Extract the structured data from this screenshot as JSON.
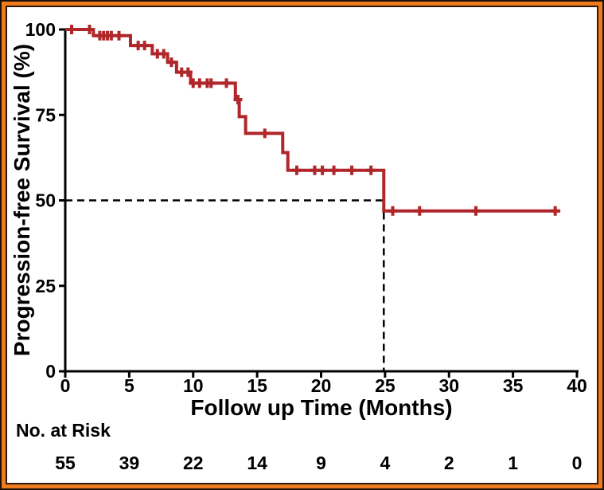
{
  "figure": {
    "background": "#ffffff",
    "border": {
      "outer": "#1c120a",
      "band": "#ef7b1f",
      "inner": "#30190c"
    }
  },
  "chart_data": {
    "type": "line",
    "subtype": "kaplan-meier-step-curve",
    "title": "",
    "xlabel": "Follow up Time (Months)",
    "ylabel": "Progression-free Survival (%)",
    "xlim": [
      0,
      40
    ],
    "ylim": [
      0,
      100
    ],
    "xticks": [
      0,
      5,
      10,
      15,
      20,
      25,
      30,
      35,
      40
    ],
    "yticks": [
      0,
      25,
      50,
      75,
      100
    ],
    "grid": false,
    "legend": false,
    "curve_color": "#b0272b",
    "axis_color": "#000000",
    "dash_color": "#000000",
    "series": [
      {
        "name": "Progression-free survival",
        "steps": [
          [
            0,
            100
          ],
          [
            2.2,
            98.2
          ],
          [
            5.1,
            95.3
          ],
          [
            6.8,
            92.9
          ],
          [
            8.0,
            90.4
          ],
          [
            8.7,
            87.5
          ],
          [
            9.8,
            84.3
          ],
          [
            13.3,
            79.5
          ],
          [
            13.6,
            74.5
          ],
          [
            14.1,
            69.6
          ],
          [
            17.0,
            64.0
          ],
          [
            17.4,
            58.8
          ],
          [
            24.9,
            46.9
          ]
        ],
        "end_time": 38.7,
        "censor_marks": [
          [
            0.5,
            100
          ],
          [
            1.9,
            100
          ],
          [
            2.7,
            98.2
          ],
          [
            3.0,
            98.2
          ],
          [
            3.3,
            98.2
          ],
          [
            3.6,
            98.2
          ],
          [
            4.2,
            98.2
          ],
          [
            5.7,
            95.3
          ],
          [
            6.2,
            95.3
          ],
          [
            7.2,
            92.9
          ],
          [
            7.7,
            92.9
          ],
          [
            8.3,
            90.4
          ],
          [
            9.1,
            87.5
          ],
          [
            9.6,
            87.5
          ],
          [
            10.0,
            84.3
          ],
          [
            10.5,
            84.3
          ],
          [
            11.1,
            84.3
          ],
          [
            11.4,
            84.3
          ],
          [
            12.6,
            84.3
          ],
          [
            13.5,
            79.5
          ],
          [
            15.6,
            69.6
          ],
          [
            18.1,
            58.8
          ],
          [
            19.5,
            58.8
          ],
          [
            20.1,
            58.8
          ],
          [
            21.0,
            58.8
          ],
          [
            22.4,
            58.8
          ],
          [
            23.9,
            58.8
          ],
          [
            25.6,
            46.9
          ],
          [
            27.7,
            46.9
          ],
          [
            32.1,
            46.9
          ],
          [
            38.3,
            46.9
          ]
        ]
      }
    ],
    "median_reference": {
      "survival_pct": 50,
      "time_months": 24.9
    },
    "risk_table": {
      "label": "No. at Risk",
      "times": [
        0,
        5,
        10,
        15,
        20,
        25,
        30,
        35,
        40
      ],
      "counts": [
        55,
        39,
        22,
        14,
        9,
        4,
        2,
        1,
        0
      ]
    }
  }
}
